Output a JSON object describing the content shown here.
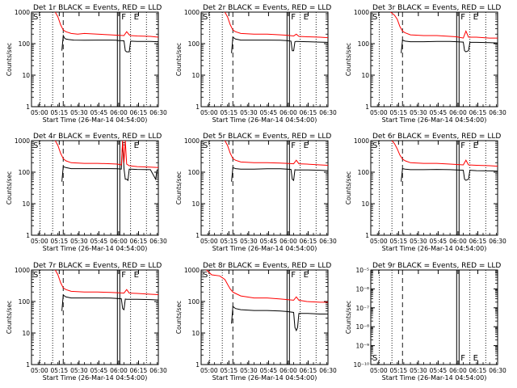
{
  "figure": {
    "x_tick_labels": [
      "05:00",
      "05:15",
      "05:30",
      "05:45",
      "06:00",
      "06:15",
      "06:30"
    ],
    "xlabel": "Start Time (26-Mar-14 04:54:00)",
    "ylabel": "Counts/sec",
    "colors": {
      "events": "#000000",
      "lld": "#ff0000"
    }
  },
  "chart_data": [
    {
      "type": "line",
      "title": "Det 1r BLACK = Events, RED = LLD",
      "x_range_minutes": [
        0,
        96
      ],
      "x_ticks_minutes": [
        6,
        21,
        36,
        51,
        66,
        81,
        96
      ],
      "x_tick_labels": [
        "05:00",
        "05:15",
        "05:30",
        "05:45",
        "06:00",
        "06:15",
        "06:30"
      ],
      "y_scale": "log",
      "ylim": [
        1,
        1000
      ],
      "y_tick_labels": [
        "1",
        "10",
        "100",
        "1000"
      ],
      "markers": {
        "S": 0,
        "F": 65,
        "E": 75
      },
      "series": [
        {
          "color": "#000000",
          "x": [
            23,
            24,
            25,
            26,
            28,
            32,
            40,
            50,
            60,
            64,
            66,
            68,
            70,
            71,
            72,
            74,
            75,
            80,
            90,
            96
          ],
          "y": [
            60,
            180,
            150,
            140,
            135,
            130,
            128,
            130,
            130,
            128,
            125,
            125,
            122,
            60,
            55,
            55,
            120,
            118,
            118,
            115
          ]
        },
        {
          "color": "#ff0000",
          "x": [
            18,
            20,
            22,
            24,
            26,
            30,
            35,
            40,
            50,
            60,
            65,
            70,
            72,
            74,
            75,
            80,
            90,
            96
          ],
          "y": [
            1000,
            700,
            400,
            270,
            240,
            210,
            200,
            210,
            200,
            190,
            185,
            180,
            240,
            190,
            180,
            175,
            170,
            160
          ]
        }
      ]
    },
    {
      "type": "line",
      "title": "Det 2r BLACK = Events, RED = LLD",
      "x_range_minutes": [
        0,
        96
      ],
      "x_ticks_minutes": [
        6,
        21,
        36,
        51,
        66,
        81,
        96
      ],
      "x_tick_labels": [
        "05:00",
        "05:15",
        "05:30",
        "05:45",
        "06:00",
        "06:15",
        "06:30"
      ],
      "y_scale": "log",
      "ylim": [
        1,
        1000
      ],
      "y_tick_labels": [
        "1",
        "10",
        "100",
        "1000"
      ],
      "markers": {
        "S": 0,
        "F": 65,
        "E": 75
      },
      "series": [
        {
          "color": "#000000",
          "x": [
            23,
            24,
            26,
            30,
            40,
            50,
            60,
            65,
            68,
            69,
            70,
            71,
            72,
            80,
            90,
            96
          ],
          "y": [
            50,
            160,
            140,
            130,
            130,
            130,
            128,
            125,
            120,
            60,
            60,
            115,
            118,
            115,
            112,
            110
          ]
        },
        {
          "color": "#ff0000",
          "x": [
            18,
            20,
            22,
            24,
            26,
            30,
            40,
            50,
            60,
            65,
            70,
            72,
            74,
            80,
            90,
            96
          ],
          "y": [
            1000,
            700,
            400,
            270,
            240,
            210,
            200,
            200,
            190,
            185,
            175,
            200,
            170,
            165,
            160,
            155
          ]
        }
      ]
    },
    {
      "type": "line",
      "title": "Det 3r BLACK = Events, RED = LLD",
      "x_range_minutes": [
        0,
        96
      ],
      "x_ticks_minutes": [
        6,
        21,
        36,
        51,
        66,
        81,
        96
      ],
      "x_tick_labels": [
        "05:00",
        "05:15",
        "05:30",
        "05:45",
        "06:00",
        "06:15",
        "06:30"
      ],
      "y_scale": "log",
      "ylim": [
        1,
        1000
      ],
      "y_tick_labels": [
        "1",
        "10",
        "100",
        "1000"
      ],
      "markers": {
        "S": 0,
        "F": 65,
        "E": 75
      },
      "series": [
        {
          "color": "#000000",
          "x": [
            23,
            24,
            26,
            30,
            40,
            50,
            60,
            65,
            70,
            71,
            72,
            74,
            75,
            80,
            90,
            96
          ],
          "y": [
            50,
            130,
            120,
            115,
            115,
            118,
            118,
            115,
            112,
            60,
            55,
            60,
            110,
            110,
            108,
            105
          ]
        },
        {
          "color": "#ff0000",
          "x": [
            15,
            18,
            20,
            22,
            24,
            26,
            30,
            40,
            50,
            60,
            65,
            70,
            72,
            74,
            80,
            90,
            96
          ],
          "y": [
            1000,
            800,
            600,
            350,
            250,
            220,
            190,
            180,
            180,
            170,
            165,
            150,
            250,
            160,
            160,
            150,
            150
          ]
        }
      ]
    },
    {
      "type": "line",
      "title": "Det 4r BLACK = Events, RED = LLD",
      "x_range_minutes": [
        0,
        96
      ],
      "x_ticks_minutes": [
        6,
        21,
        36,
        51,
        66,
        81,
        96
      ],
      "x_tick_labels": [
        "05:00",
        "05:15",
        "05:30",
        "05:45",
        "06:00",
        "06:15",
        "06:30"
      ],
      "y_scale": "log",
      "ylim": [
        1,
        1000
      ],
      "y_tick_labels": [
        "1",
        "10",
        "100",
        "1000"
      ],
      "markers": {
        "S": 0,
        "F": 65,
        "E": 75
      },
      "series": [
        {
          "color": "#000000",
          "x": [
            23,
            24,
            26,
            30,
            40,
            50,
            60,
            65,
            68,
            69,
            70,
            71,
            72,
            73,
            74,
            75,
            80,
            90,
            94,
            95,
            96
          ],
          "y": [
            50,
            150,
            140,
            130,
            130,
            130,
            130,
            128,
            125,
            900,
            130,
            60,
            60,
            55,
            125,
            125,
            122,
            120,
            60,
            118,
            118
          ]
        },
        {
          "color": "#ff0000",
          "x": [
            18,
            20,
            22,
            24,
            26,
            30,
            40,
            50,
            60,
            65,
            68,
            69,
            70,
            71,
            72,
            74,
            80,
            90,
            96
          ],
          "y": [
            1000,
            700,
            400,
            270,
            230,
            200,
            190,
            190,
            185,
            180,
            170,
            1000,
            200,
            1000,
            180,
            160,
            150,
            145,
            140
          ]
        }
      ]
    },
    {
      "type": "line",
      "title": "Det 5r BLACK = Events, RED = LLD",
      "x_range_minutes": [
        0,
        96
      ],
      "x_ticks_minutes": [
        6,
        21,
        36,
        51,
        66,
        81,
        96
      ],
      "x_tick_labels": [
        "05:00",
        "05:15",
        "05:30",
        "05:45",
        "06:00",
        "06:15",
        "06:30"
      ],
      "y_scale": "log",
      "ylim": [
        1,
        1000
      ],
      "y_tick_labels": [
        "1",
        "10",
        "100",
        "1000"
      ],
      "markers": {
        "S": 0,
        "F": 65,
        "E": 75
      },
      "series": [
        {
          "color": "#000000",
          "x": [
            23,
            24,
            26,
            30,
            40,
            50,
            60,
            65,
            68,
            69,
            70,
            71,
            72,
            80,
            90,
            96
          ],
          "y": [
            50,
            140,
            130,
            125,
            125,
            128,
            128,
            125,
            122,
            60,
            55,
            120,
            118,
            118,
            115,
            112
          ]
        },
        {
          "color": "#ff0000",
          "x": [
            18,
            20,
            22,
            24,
            26,
            30,
            40,
            50,
            60,
            65,
            70,
            72,
            74,
            80,
            90,
            96
          ],
          "y": [
            1000,
            700,
            400,
            270,
            240,
            210,
            200,
            200,
            195,
            190,
            185,
            240,
            185,
            180,
            170,
            165
          ]
        }
      ]
    },
    {
      "type": "line",
      "title": "Det 6r BLACK = Events, RED = LLD",
      "x_range_minutes": [
        0,
        96
      ],
      "x_ticks_minutes": [
        6,
        21,
        36,
        51,
        66,
        81,
        96
      ],
      "x_tick_labels": [
        "05:00",
        "05:15",
        "05:30",
        "05:45",
        "06:00",
        "06:15",
        "06:30"
      ],
      "y_scale": "log",
      "ylim": [
        1,
        1000
      ],
      "y_tick_labels": [
        "1",
        "10",
        "100",
        "1000"
      ],
      "markers": {
        "S": 0,
        "F": 65,
        "E": 75
      },
      "series": [
        {
          "color": "#000000",
          "x": [
            23,
            24,
            26,
            30,
            40,
            50,
            60,
            65,
            70,
            71,
            72,
            74,
            75,
            80,
            90,
            96
          ],
          "y": [
            50,
            130,
            125,
            120,
            120,
            122,
            120,
            118,
            115,
            60,
            55,
            60,
            115,
            112,
            110,
            108
          ]
        },
        {
          "color": "#ff0000",
          "x": [
            16,
            18,
            20,
            22,
            24,
            26,
            30,
            40,
            50,
            60,
            65,
            70,
            72,
            74,
            80,
            90,
            96
          ],
          "y": [
            1000,
            800,
            550,
            350,
            260,
            230,
            200,
            190,
            190,
            180,
            175,
            170,
            240,
            170,
            165,
            160,
            155
          ]
        }
      ]
    },
    {
      "type": "line",
      "title": "Det 7r BLACK = Events, RED = LLD",
      "x_range_minutes": [
        0,
        96
      ],
      "x_ticks_minutes": [
        6,
        21,
        36,
        51,
        66,
        81,
        96
      ],
      "x_tick_labels": [
        "05:00",
        "05:15",
        "05:30",
        "05:45",
        "06:00",
        "06:15",
        "06:30"
      ],
      "y_scale": "log",
      "ylim": [
        1,
        1000
      ],
      "y_tick_labels": [
        "1",
        "10",
        "100",
        "1000"
      ],
      "markers": {
        "S": 0,
        "F": 65,
        "E": 75
      },
      "series": [
        {
          "color": "#000000",
          "x": [
            23,
            24,
            26,
            30,
            40,
            50,
            60,
            65,
            68,
            69,
            70,
            71,
            72,
            80,
            90,
            96
          ],
          "y": [
            50,
            160,
            140,
            130,
            130,
            130,
            128,
            125,
            122,
            60,
            55,
            120,
            118,
            118,
            115,
            112
          ]
        },
        {
          "color": "#ff0000",
          "x": [
            18,
            20,
            22,
            24,
            26,
            30,
            40,
            50,
            60,
            65,
            70,
            72,
            74,
            80,
            90,
            96
          ],
          "y": [
            1000,
            700,
            400,
            270,
            240,
            210,
            200,
            200,
            195,
            190,
            185,
            240,
            185,
            180,
            170,
            165
          ]
        }
      ]
    },
    {
      "type": "line",
      "title": "Det 8r BLACK = Events, RED = LLD",
      "x_range_minutes": [
        0,
        96
      ],
      "x_ticks_minutes": [
        6,
        21,
        36,
        51,
        66,
        81,
        96
      ],
      "x_tick_labels": [
        "05:00",
        "05:15",
        "05:30",
        "05:45",
        "06:00",
        "06:15",
        "06:30"
      ],
      "y_scale": "log",
      "ylim": [
        1,
        1000
      ],
      "y_tick_labels": [
        "1",
        "10",
        "100",
        "1000"
      ],
      "markers": {
        "S": 0,
        "F": 65,
        "E": 75
      },
      "series": [
        {
          "color": "#000000",
          "x": [
            23,
            24,
            26,
            30,
            40,
            50,
            60,
            65,
            70,
            71,
            72,
            73,
            74,
            80,
            90,
            96
          ],
          "y": [
            20,
            70,
            60,
            55,
            52,
            52,
            50,
            48,
            45,
            15,
            12,
            15,
            42,
            42,
            40,
            40
          ]
        },
        {
          "color": "#ff0000",
          "x": [
            4,
            8,
            14,
            18,
            20,
            22,
            24,
            26,
            30,
            40,
            50,
            60,
            65,
            70,
            72,
            74,
            80,
            90,
            96
          ],
          "y": [
            1000,
            700,
            650,
            500,
            350,
            250,
            200,
            180,
            150,
            130,
            130,
            120,
            115,
            110,
            140,
            110,
            100,
            95,
            95
          ]
        }
      ]
    },
    {
      "type": "line",
      "title": "Det 9r BLACK = Events, RED = LLD",
      "x_range_minutes": [
        0,
        96
      ],
      "x_ticks_minutes": [
        6,
        21,
        36,
        51,
        66,
        81,
        96
      ],
      "x_tick_labels": [
        "05:00",
        "05:15",
        "05:30",
        "05:45",
        "06:00",
        "06:15",
        "06:30"
      ],
      "y_scale": "log",
      "ylim": [
        1e-10,
        1e-05
      ],
      "y_tick_labels": [
        "10⁻¹⁰",
        "10⁻⁹",
        "10⁻⁸",
        "10⁻⁷",
        "10⁻⁶",
        "10⁻⁵"
      ],
      "markers": {
        "S": 0,
        "F": 65,
        "E": 75
      },
      "series": []
    }
  ]
}
